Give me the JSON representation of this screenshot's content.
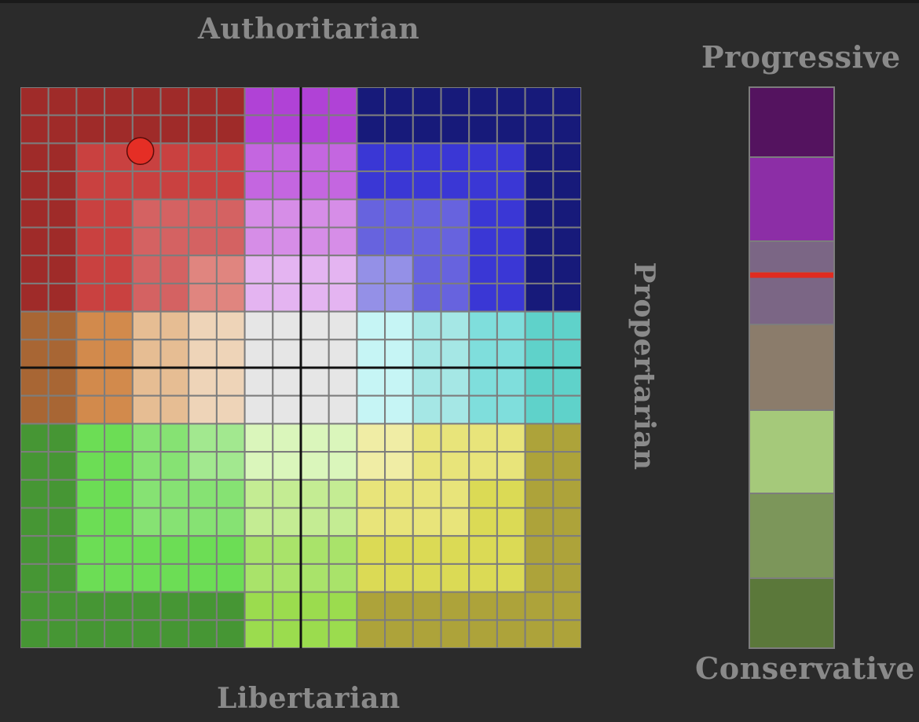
{
  "axes": {
    "top": "Authoritarian",
    "bottom": "Libertarian",
    "right": "Propertarian"
  },
  "scale": {
    "top_label": "Progressive",
    "bottom_label": "Conservative",
    "segments": [
      "#54135f",
      "#8c2ea6",
      "#7b6685",
      "#7b6685",
      "#8b7c6b",
      "#a5c97a",
      "#7c965a",
      "#5b783a"
    ],
    "marker_value": 0.33,
    "marker_color": "#e02b20"
  },
  "compass": {
    "columns": 20,
    "rows": 20,
    "user_point": {
      "col": 4,
      "row": 2,
      "color": "#e52e25"
    },
    "palette": {
      "A": "#9f2b29",
      "B": "#c94140",
      "C": "#d46262",
      "D": "#e0857f",
      "E": "#b042d6",
      "F": "#c466e0",
      "G": "#d68de7",
      "H": "#e4b4f1",
      "I": "#171a7a",
      "J": "#3a37d5",
      "K": "#6763de",
      "L": "#9490e7",
      "M": "#a86634",
      "N": "#d28a4c",
      "O": "#e6bd93",
      "P": "#eed4b8",
      "Q": "#e6e6e6",
      "R": "#c6f5f5",
      "S": "#a5e7e5",
      "T": "#7fdedc",
      "U": "#5fd2ca",
      "V": "#469634",
      "W": "#6cdd55",
      "X": "#86e273",
      "Y": "#a2e88f",
      "Z": "#daf6bb",
      "a": "#c4ec93",
      "b": "#a9e36a",
      "c": "#9bdc4e",
      "d": "#f0eda5",
      "e": "#e8e47a",
      "f": "#dbda55",
      "g": "#ada33a"
    },
    "rows_map": [
      "AAAAAAAAEEEEIIIIIIII",
      "AAAAAAAAEEEEIIIIIIII",
      "AABBBBBBFFFFJJJJJJII",
      "AABBBBBBFFFFJJJJJJII",
      "AABBCCCCGGGGKKKKJJII",
      "AABBCCCCGGGGKKKKJJII",
      "AABBCCDDHHHHLLKKJJII",
      "AABBCCDDHHHHLLKKJJII",
      "MMNNOOPPQQQQRRSSTTUU",
      "MMNNOOPPQQQQRRSSTTUU",
      "MMNNOOPPQQQQRRSSTTUU",
      "MMNNOOPPQQQQRRSSTTUU",
      "VVWWXXYYZZZZddeeeegg",
      "VVWWXXYYZZZZddeeeegg",
      "VVWWXXXXaaaaeeeeffgg",
      "VVWWXXXXaaaaeeeeffgg",
      "VVWWWWWWbbbbffffffgg",
      "VVWWWWWWbbbbffffffgg",
      "VVVVVVVVccccgggggggg",
      "VVVVVVVVccccgggggggg"
    ]
  }
}
